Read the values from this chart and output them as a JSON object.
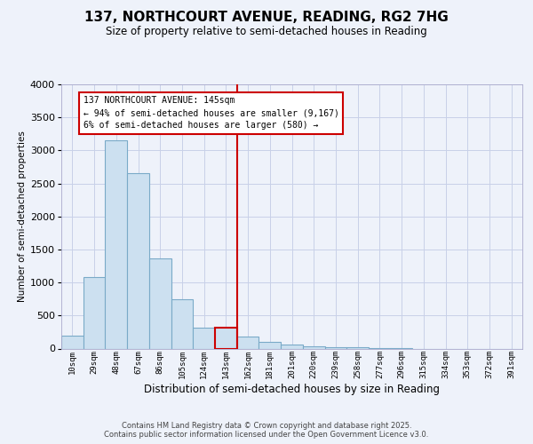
{
  "title": "137, NORTHCOURT AVENUE, READING, RG2 7HG",
  "subtitle": "Size of property relative to semi-detached houses in Reading",
  "xlabel": "Distribution of semi-detached houses by size in Reading",
  "ylabel": "Number of semi-detached properties",
  "property_size_label": "137 NORTHCOURT AVENUE: 145sqm",
  "pct_smaller": 94,
  "count_smaller": 9167,
  "pct_larger": 6,
  "count_larger": 580,
  "bin_labels": [
    "10sqm",
    "29sqm",
    "48sqm",
    "67sqm",
    "86sqm",
    "105sqm",
    "124sqm",
    "143sqm",
    "162sqm",
    "181sqm",
    "201sqm",
    "220sqm",
    "239sqm",
    "258sqm",
    "277sqm",
    "296sqm",
    "315sqm",
    "334sqm",
    "353sqm",
    "372sqm",
    "391sqm"
  ],
  "bin_values": [
    200,
    1080,
    3150,
    2650,
    1370,
    740,
    320,
    320,
    175,
    100,
    60,
    40,
    25,
    15,
    8,
    5,
    0,
    0,
    0,
    0,
    0
  ],
  "bar_color": "#cce0f0",
  "bar_edge_color": "#7aaac8",
  "highlight_bar_index": 7,
  "highlight_color": "#cc0000",
  "vline_color": "#cc0000",
  "background_color": "#eef2fa",
  "grid_color": "#c8d0e8",
  "ylim_max": 4000,
  "yticks": [
    0,
    500,
    1000,
    1500,
    2000,
    2500,
    3000,
    3500,
    4000
  ],
  "annotation_text_line1": "137 NORTHCOURT AVENUE: 145sqm",
  "annotation_text_line2": "← 94% of semi-detached houses are smaller (9,167)",
  "annotation_text_line3": "6% of semi-detached houses are larger (580) →",
  "footer1": "Contains HM Land Registry data © Crown copyright and database right 2025.",
  "footer2": "Contains public sector information licensed under the Open Government Licence v3.0."
}
